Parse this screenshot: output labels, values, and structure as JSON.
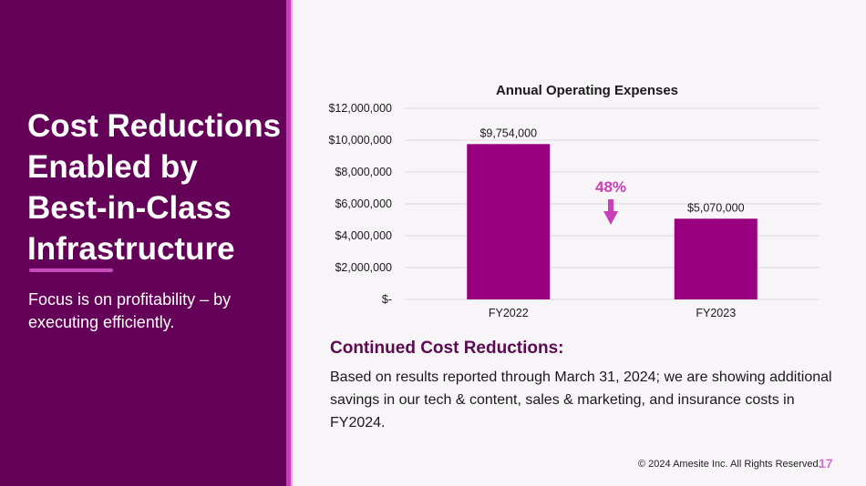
{
  "slide": {
    "title": "Cost Reductions Enabled by Best-in-Class Infrastructure",
    "subtitle": "Focus is on profitability – by executing efficiently.",
    "section_heading": "Continued Cost Reductions:",
    "body": "Based on results reported through March 31, 2024; we are showing additional savings in our tech & content, sales & marketing, and insurance costs in FY2024.",
    "footer": "© 2024 Amesite Inc. All Rights Reserved.",
    "page_number": "17"
  },
  "colors": {
    "panel": "#640057",
    "accent": "#c23fb4",
    "bar": "#990080",
    "annotation": "#c83fb8",
    "heading": "#5b0a52"
  },
  "chart_data": {
    "type": "bar",
    "title": "Annual Operating Expenses",
    "categories": [
      "FY2022",
      "FY2023"
    ],
    "values": [
      9754000,
      5070000
    ],
    "data_labels": [
      "$9,754,000",
      "$5,070,000"
    ],
    "xlabel": "",
    "ylabel": "",
    "ylim": [
      0,
      12000000
    ],
    "yticks": [
      0,
      2000000,
      4000000,
      6000000,
      8000000,
      10000000,
      12000000
    ],
    "ytick_labels": [
      "$-",
      "$2,000,000",
      "$4,000,000",
      "$6,000,000",
      "$8,000,000",
      "$10,000,000",
      "$12,000,000"
    ],
    "grid": true,
    "legend": "none",
    "annotations": [
      {
        "text": "48%",
        "type": "down-arrow",
        "meaning": "reduction from FY2022 to FY2023"
      }
    ]
  }
}
